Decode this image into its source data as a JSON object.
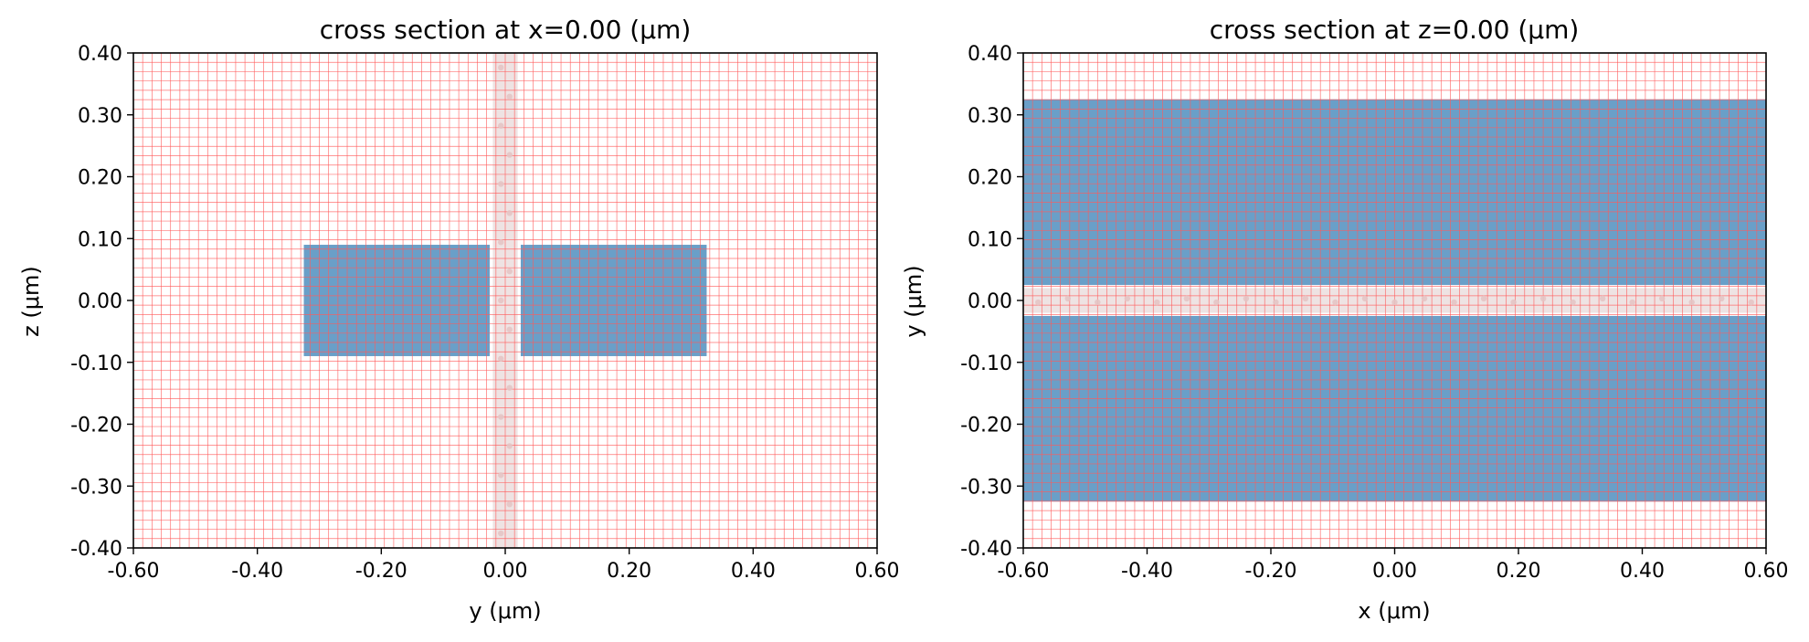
{
  "chart_data": [
    {
      "type": "cross-section",
      "title": "cross section at x=0.00 (μm)",
      "xlabel": "y (μm)",
      "ylabel": "z (μm)",
      "xlim": [
        -0.6,
        0.6
      ],
      "ylim": [
        -0.4,
        0.4
      ],
      "xticks": [
        "-0.60",
        "-0.40",
        "-0.20",
        "0.00",
        "0.20",
        "0.40",
        "0.60"
      ],
      "yticks": [
        "0.40",
        "0.30",
        "0.20",
        "0.10",
        "0.00",
        "-0.10",
        "-0.20",
        "-0.30",
        "-0.40"
      ],
      "grid": "on",
      "structures": [
        {
          "x0": -0.325,
          "x1": -0.025,
          "y0": -0.09,
          "y1": 0.09
        },
        {
          "x0": 0.025,
          "x1": 0.325,
          "y0": -0.09,
          "y1": 0.09
        }
      ],
      "gap_band": {
        "axis": "x",
        "from": -0.02,
        "to": 0.02
      },
      "gap_markers": {
        "axis": "x",
        "along": "y",
        "count": 17,
        "stagger": 0.007
      }
    },
    {
      "type": "cross-section",
      "title": "cross section at z=0.00 (μm)",
      "xlabel": "x (μm)",
      "ylabel": "y (μm)",
      "xlim": [
        -0.6,
        0.6
      ],
      "ylim": [
        -0.4,
        0.4
      ],
      "xticks": [
        "-0.60",
        "-0.40",
        "-0.20",
        "0.00",
        "0.20",
        "0.40",
        "0.60"
      ],
      "yticks": [
        "0.40",
        "0.30",
        "0.20",
        "0.10",
        "0.00",
        "-0.10",
        "-0.20",
        "-0.30",
        "-0.40"
      ],
      "grid": "on",
      "structures": [
        {
          "x0": -0.6,
          "x1": 0.6,
          "y0": 0.025,
          "y1": 0.325
        },
        {
          "x0": -0.6,
          "x1": 0.6,
          "y0": -0.325,
          "y1": -0.025
        }
      ],
      "gap_band": {
        "axis": "y",
        "from": -0.02,
        "to": 0.02
      },
      "gap_markers": {
        "axis": "y",
        "along": "x",
        "count": 25,
        "stagger": 0.003
      }
    }
  ],
  "colors": {
    "structure": "#6a9fc8",
    "grid": "#ff5a5a",
    "gap_band": "#e8dada",
    "marker": "#e4c4c4",
    "axes": "#000000"
  }
}
